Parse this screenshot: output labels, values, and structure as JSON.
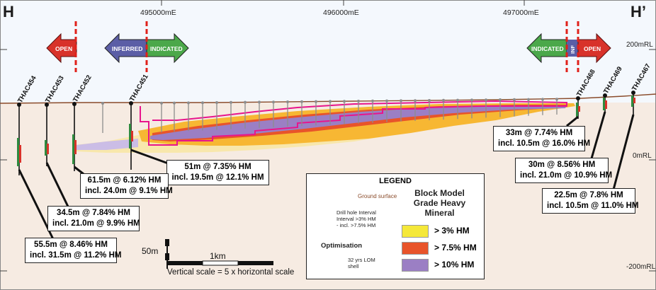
{
  "section": {
    "left_label": "H",
    "right_label": "H’"
  },
  "eastings": [
    "495000mE",
    "496000mE",
    "497000mE"
  ],
  "elevations": [
    "200mRL",
    "0mRL",
    "-200mRL"
  ],
  "arrows": {
    "open_left": "OPEN",
    "inferred": "INFERRED",
    "indicated_left": "INDICATED",
    "indicated_right": "INDICATED",
    "inf_right": "INF",
    "open_right": "OPEN"
  },
  "drillholes": {
    "thac454": "THAC454",
    "thac453": "THAC453",
    "thac452": "THAC452",
    "thac451": "THAC451",
    "thac468": "THAC468",
    "thac469": "THAC469",
    "thac467": "THAC467"
  },
  "intercepts": {
    "thac451": {
      "line1": "51m @ 7.35% HM",
      "line2": "incl. 19.5m @ 12.1% HM"
    },
    "thac452": {
      "line1": "61.5m @ 6.12% HM",
      "line2": "incl. 24.0m @ 9.1% HM"
    },
    "thac453": {
      "line1": "34.5m @ 7.84% HM",
      "line2": "incl. 21.0m @ 9.9% HM"
    },
    "thac454": {
      "line1": "55.5m @ 8.46% HM",
      "line2": "incl. 31.5m @ 11.2% HM"
    },
    "thac468": {
      "line1": "33m @ 7.74% HM",
      "line2": "incl. 10.5m @ 16.0% HM"
    },
    "thac469": {
      "line1": "30m @ 8.56% HM",
      "line2": "incl. 21.0m @ 10.9% HM"
    },
    "thac467": {
      "line1": "22.5m @ 7.8% HM",
      "line2": "incl. 10.5m @ 11.0% HM"
    }
  },
  "scale": {
    "vertical": "50m",
    "horizontal": "1km",
    "note": "Vertical scale = 5 x horizontal scale"
  },
  "legend": {
    "title": "LEGEND",
    "ground_surface": "Ground surface",
    "drill_interval": "Drill hole Interval\nInterval >3% HM\n- incl. >7.5% HM",
    "optimisation": "Optimisation",
    "lom_shell": "32 yrs LOM\nshell",
    "block_model_title": "Block Model\nGrade Heavy\nMineral",
    "grade_3": "> 3% HM",
    "grade_75": "> 7.5% HM",
    "grade_10": "> 10% HM"
  },
  "colors": {
    "grade_3": "#f5d930",
    "grade_75": "#e8542a",
    "grade_10": "#9b7fc4",
    "low_grade": "#f7b733",
    "shell": "#e8158c",
    "ground": "#f3e7dc",
    "open": "#d8322a",
    "inferred": "#5b5ea6",
    "indicated": "#4ba84a"
  }
}
